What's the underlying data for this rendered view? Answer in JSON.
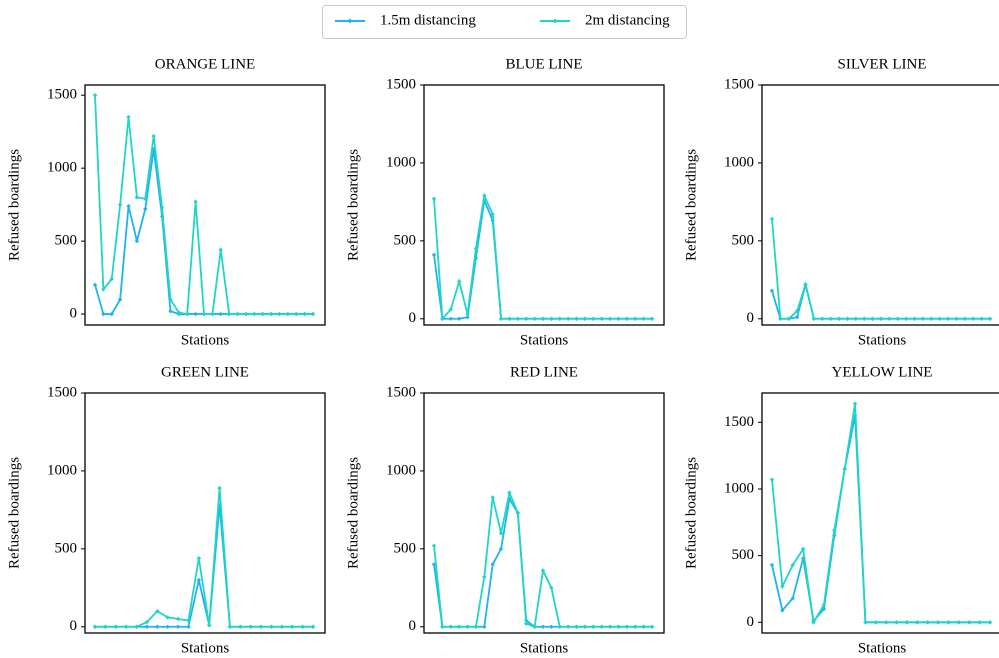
{
  "chart_data": [
    {
      "type": "line",
      "title": "ORANGE LINE",
      "xlabel": "Stations",
      "ylabel": "Refused boardings",
      "ylim": [
        -75,
        1570
      ],
      "yticks": [
        0,
        500,
        1000,
        1500
      ],
      "series": [
        {
          "name": "1.5m distancing",
          "color": "#1fb4ec",
          "values": [
            200,
            0,
            0,
            100,
            740,
            500,
            720,
            1130,
            670,
            20,
            0,
            0,
            0,
            0,
            0,
            0,
            0,
            0,
            0,
            0,
            0,
            0,
            0,
            0,
            0,
            0,
            0
          ]
        },
        {
          "name": "2m distancing",
          "color": "#1fd6c6",
          "values": [
            1500,
            170,
            240,
            750,
            1350,
            800,
            790,
            1220,
            730,
            100,
            10,
            0,
            770,
            0,
            0,
            440,
            0,
            0,
            0,
            0,
            0,
            0,
            0,
            0,
            0,
            0,
            0
          ]
        }
      ]
    },
    {
      "type": "line",
      "title": "BLUE LINE",
      "xlabel": "Stations",
      "ylabel": "Refused boardings",
      "ylim": [
        -40,
        1500
      ],
      "yticks": [
        0,
        500,
        1000,
        1500
      ],
      "series": [
        {
          "name": "1.5m distancing",
          "color": "#1fb4ec",
          "values": [
            410,
            0,
            0,
            0,
            10,
            390,
            760,
            630,
            0,
            0,
            0,
            0,
            0,
            0,
            0,
            0,
            0,
            0,
            0,
            0,
            0,
            0,
            0,
            0,
            0,
            0,
            0
          ]
        },
        {
          "name": "2m distancing",
          "color": "#1fd6c6",
          "values": [
            770,
            0,
            60,
            240,
            30,
            450,
            790,
            670,
            0,
            0,
            0,
            0,
            0,
            0,
            0,
            0,
            0,
            0,
            0,
            0,
            0,
            0,
            0,
            0,
            0,
            0,
            0
          ]
        }
      ]
    },
    {
      "type": "line",
      "title": "SILVER LINE",
      "xlabel": "Stations",
      "ylabel": "Refused boardings",
      "ylim": [
        -40,
        1500
      ],
      "yticks": [
        0,
        500,
        1000,
        1500
      ],
      "series": [
        {
          "name": "1.5m distancing",
          "color": "#1fb4ec",
          "values": [
            180,
            0,
            0,
            10,
            220,
            0,
            0,
            0,
            0,
            0,
            0,
            0,
            0,
            0,
            0,
            0,
            0,
            0,
            0,
            0,
            0,
            0,
            0,
            0,
            0,
            0,
            0
          ]
        },
        {
          "name": "2m distancing",
          "color": "#1fd6c6",
          "values": [
            640,
            0,
            0,
            50,
            220,
            0,
            0,
            0,
            0,
            0,
            0,
            0,
            0,
            0,
            0,
            0,
            0,
            0,
            0,
            0,
            0,
            0,
            0,
            0,
            0,
            0,
            0
          ]
        }
      ]
    },
    {
      "type": "line",
      "title": "GREEN LINE",
      "xlabel": "Stations",
      "ylabel": "Refused boardings",
      "ylim": [
        -40,
        1500
      ],
      "yticks": [
        0,
        500,
        1000,
        1500
      ],
      "series": [
        {
          "name": "1.5m distancing",
          "color": "#1fb4ec",
          "values": [
            0,
            0,
            0,
            0,
            0,
            0,
            0,
            0,
            0,
            0,
            300,
            10,
            780,
            0,
            0,
            0,
            0,
            0,
            0,
            0,
            0,
            0
          ]
        },
        {
          "name": "2m distancing",
          "color": "#1fd6c6",
          "values": [
            0,
            0,
            0,
            0,
            0,
            30,
            100,
            60,
            50,
            40,
            440,
            10,
            890,
            0,
            0,
            0,
            0,
            0,
            0,
            0,
            0,
            0
          ]
        }
      ]
    },
    {
      "type": "line",
      "title": "RED LINE",
      "xlabel": "Stations",
      "ylabel": "Refused boardings",
      "ylim": [
        -40,
        1500
      ],
      "yticks": [
        0,
        500,
        1000,
        1500
      ],
      "series": [
        {
          "name": "1.5m distancing",
          "color": "#1fb4ec",
          "values": [
            400,
            0,
            0,
            0,
            0,
            0,
            0,
            400,
            500,
            820,
            730,
            40,
            0,
            0,
            0,
            0,
            0,
            0,
            0,
            0,
            0,
            0,
            0,
            0,
            0,
            0,
            0
          ]
        },
        {
          "name": "2m distancing",
          "color": "#1fd6c6",
          "values": [
            520,
            0,
            0,
            0,
            0,
            0,
            320,
            830,
            600,
            860,
            730,
            20,
            0,
            360,
            250,
            0,
            0,
            0,
            0,
            0,
            0,
            0,
            0,
            0,
            0,
            0,
            0
          ]
        }
      ]
    },
    {
      "type": "line",
      "title": "YELLOW LINE",
      "xlabel": "Stations",
      "ylabel": "Refused boardings",
      "ylim": [
        -80,
        1720
      ],
      "yticks": [
        0,
        500,
        1000,
        1500
      ],
      "series": [
        {
          "name": "1.5m distancing",
          "color": "#1fb4ec",
          "values": [
            430,
            90,
            180,
            480,
            10,
            100,
            650,
            1150,
            1550,
            0,
            0,
            0,
            0,
            0,
            0,
            0,
            0,
            0,
            0,
            0,
            0,
            0
          ]
        },
        {
          "name": "2m distancing",
          "color": "#1fd6c6",
          "values": [
            1070,
            270,
            430,
            550,
            0,
            130,
            690,
            1150,
            1640,
            0,
            0,
            0,
            0,
            0,
            0,
            0,
            0,
            0,
            0,
            0,
            0,
            0
          ]
        }
      ]
    }
  ]
}
